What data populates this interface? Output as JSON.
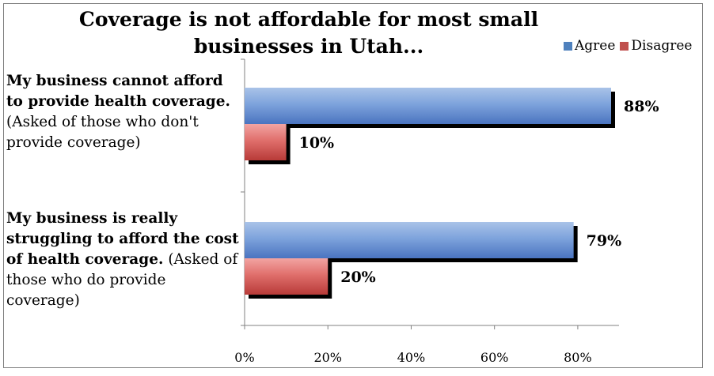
{
  "chart_data": {
    "type": "bar",
    "orientation": "horizontal",
    "title": "Coverage is not affordable for most small businesses in Utah...",
    "title_lines": [
      "Coverage is not affordable for most small",
      "businesses in Utah..."
    ],
    "categories": [
      {
        "bold": "My business cannot afford to provide health coverage.",
        "rest": "(Asked of those who don't provide coverage)"
      },
      {
        "bold": "My business is really struggling to afford the cost of health coverage.",
        "rest": "(Asked of those who do provide coverage)"
      }
    ],
    "series": [
      {
        "name": "Agree",
        "values": [
          88,
          79
        ],
        "labels": [
          "88%",
          "79%"
        ],
        "color": "#4f81bd"
      },
      {
        "name": "Disagree",
        "values": [
          10,
          20
        ],
        "labels": [
          "10%",
          "20%"
        ],
        "color": "#c0504d"
      }
    ],
    "xlim": [
      0,
      88
    ],
    "xticks": [
      "0%",
      "20%",
      "40%",
      "60%",
      "80%"
    ],
    "xtick_values": [
      0,
      20,
      40,
      60,
      80
    ],
    "legend_position": "top-right",
    "grid": false
  }
}
